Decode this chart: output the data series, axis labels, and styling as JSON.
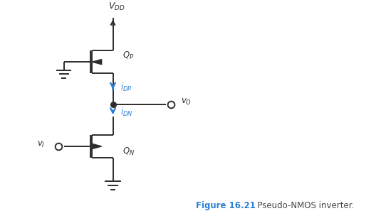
{
  "fig_width": 5.35,
  "fig_height": 3.04,
  "dpi": 100,
  "bg_color": "#ffffff",
  "line_color": "#2d2d2d",
  "blue_color": "#2B7FD4",
  "line_width": 1.4,
  "vdd_label": "$V_{DD}$",
  "qp_label": "$Q_P$",
  "qn_label": "$Q_N$",
  "idp_label": "$i_{DP}$",
  "idn_label": "$i_{DN}$",
  "vo_label": "$v_O$",
  "vi_label": "$v_I$",
  "fig_label_bold": "Figure 16.21",
  "fig_label_normal": "  Pseudo-NMOS inverter.",
  "fig_label_color": "#2B7FD4",
  "fig_label_normal_color": "#444444",
  "mx": 0.38,
  "circuit_scale": 1.0
}
